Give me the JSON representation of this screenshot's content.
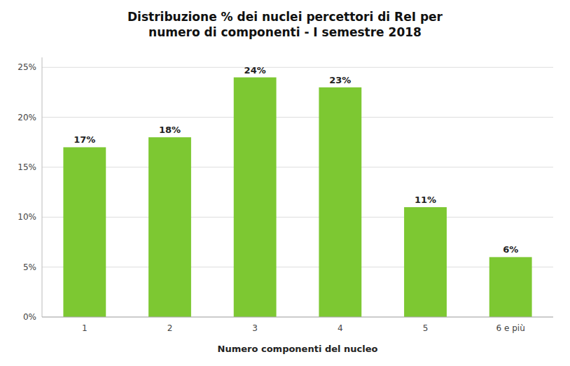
{
  "chart_data": {
    "type": "bar",
    "title": "Distribuzione % dei nuclei percettori di ReI per\nnumero di componenti - I semestre 2018",
    "x_label": "Numero componenti del nucleo",
    "categories": [
      "1",
      "2",
      "3",
      "4",
      "5",
      "6 e più"
    ],
    "values": [
      17,
      18,
      24,
      23,
      11,
      6
    ],
    "value_labels": [
      "17%",
      "18%",
      "24%",
      "23%",
      "11%",
      "6%"
    ],
    "data_labels": true,
    "color": "#7dc832",
    "ylim": [
      0,
      26
    ],
    "yticks": [
      {
        "value": 0,
        "label": "0%"
      },
      {
        "value": 5,
        "label": "5%"
      },
      {
        "value": 10,
        "label": "10%"
      },
      {
        "value": 15,
        "label": "15%"
      },
      {
        "value": 20,
        "label": "20%"
      },
      {
        "value": 25,
        "label": "25%"
      }
    ],
    "grid": true
  }
}
